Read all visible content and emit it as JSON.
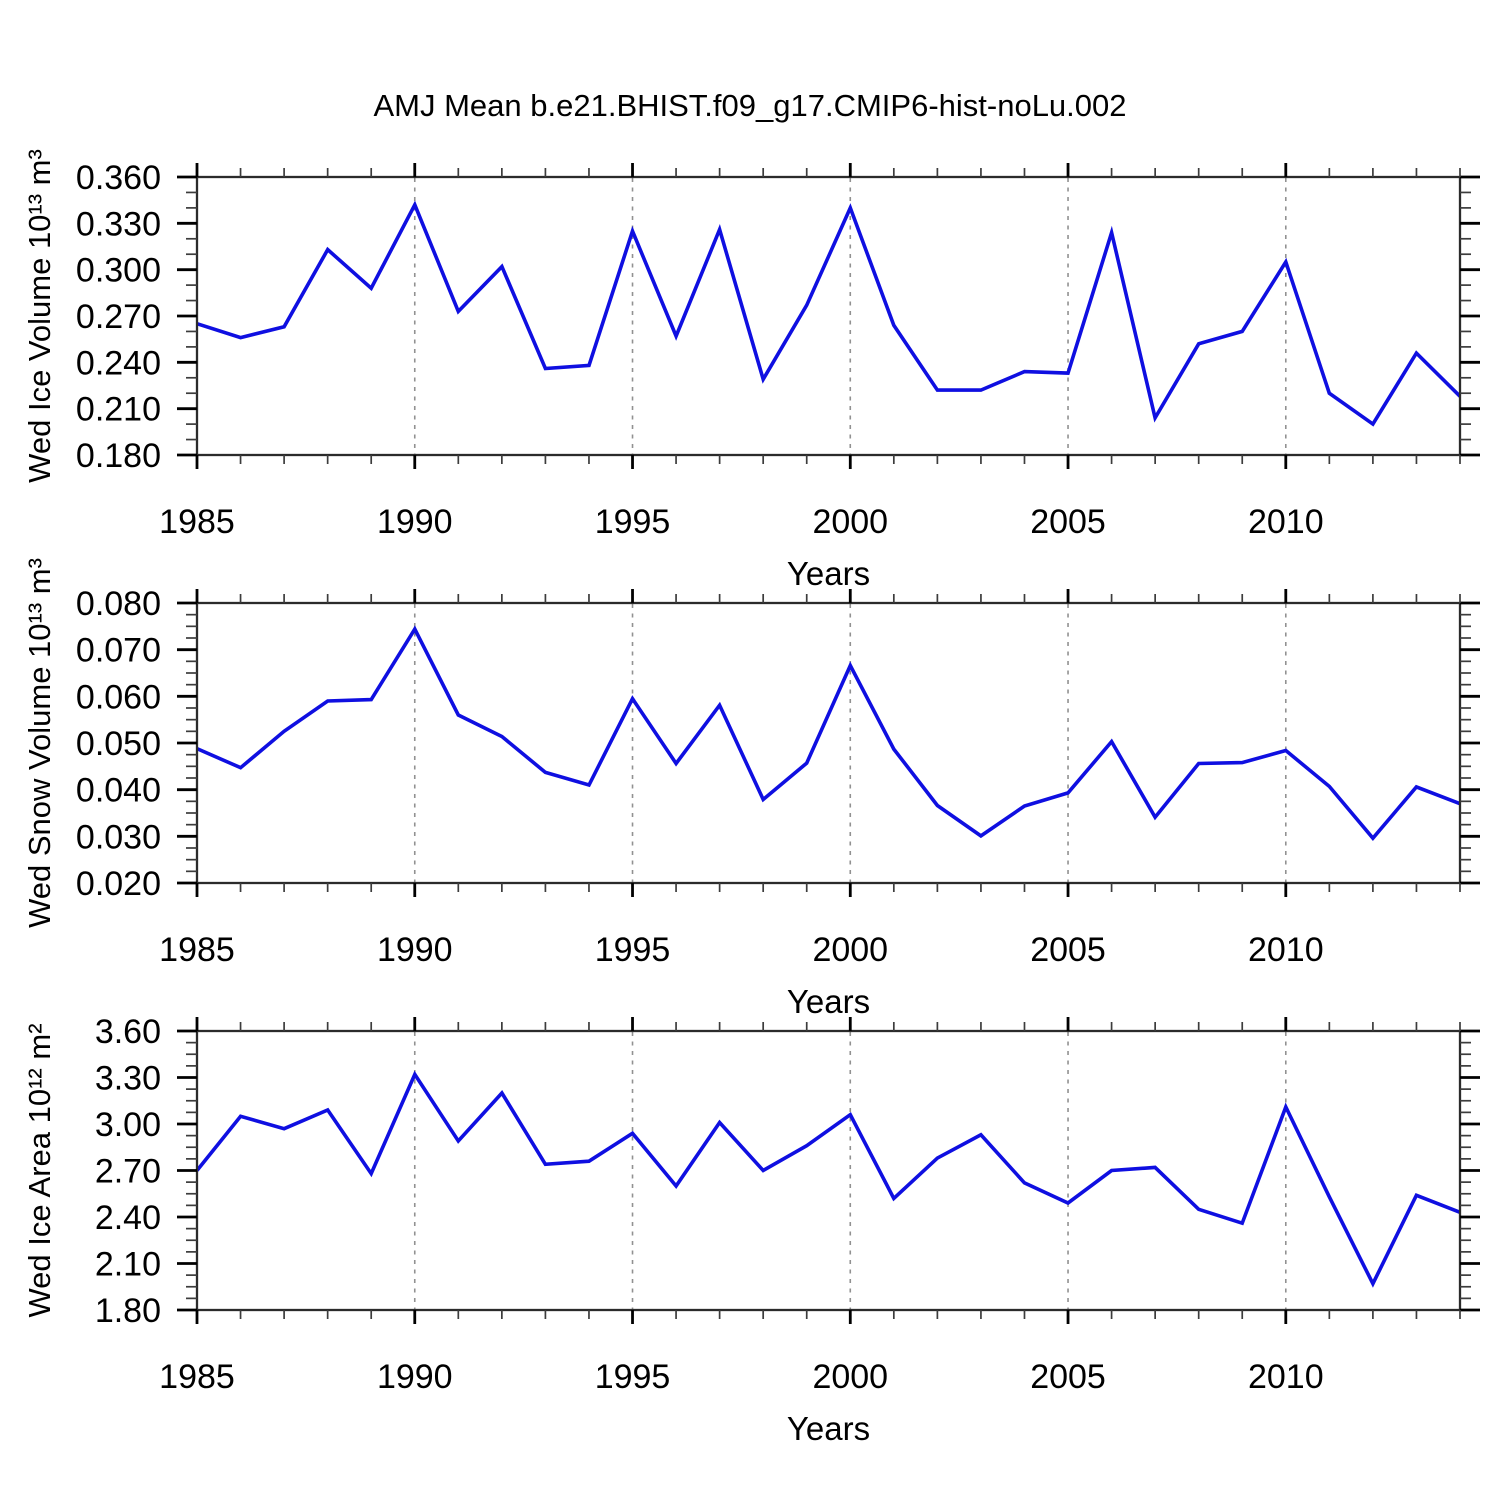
{
  "title": "AMJ Mean b.e21.BHIST.f09_g17.CMIP6-hist-noLu.002",
  "colors": {
    "line": "#0f0fe1",
    "grid": "#919191",
    "border": "#2b2b2b",
    "major_tick": "#000000",
    "minor_tick": "#3c3c3c",
    "text": "#000000"
  },
  "chart_data": [
    {
      "name": "wed-ice-volume",
      "type": "line",
      "ylabel": "Wed Ice Volume 10¹³ m³",
      "xlabel": "Years",
      "x": [
        1985,
        1986,
        1987,
        1988,
        1989,
        1990,
        1991,
        1992,
        1993,
        1994,
        1995,
        1996,
        1997,
        1998,
        1999,
        2000,
        2001,
        2002,
        2003,
        2004,
        2005,
        2006,
        2007,
        2008,
        2009,
        2010,
        2011,
        2012,
        2013,
        2014
      ],
      "values": [
        0.265,
        0.256,
        0.263,
        0.313,
        0.288,
        0.342,
        0.273,
        0.302,
        0.236,
        0.238,
        0.325,
        0.257,
        0.326,
        0.229,
        0.277,
        0.34,
        0.264,
        0.222,
        0.222,
        0.234,
        0.233,
        0.324,
        0.204,
        0.252,
        0.26,
        0.305,
        0.22,
        0.2,
        0.246,
        0.218
      ],
      "xlim": [
        1985,
        2014
      ],
      "ylim": [
        0.18,
        0.36
      ],
      "ytick_values": [
        0.18,
        0.21,
        0.24,
        0.27,
        0.3,
        0.33,
        0.36
      ],
      "ytick_labels": [
        "0.180",
        "0.210",
        "0.240",
        "0.270",
        "0.300",
        "0.330",
        "0.360"
      ],
      "ytick_minor_step": 0.01,
      "xticks_major": [
        1985,
        1990,
        1995,
        2000,
        2005,
        2010
      ],
      "xtick_labels": [
        "1985",
        "1990",
        "1995",
        "2000",
        "2005",
        "2010"
      ],
      "grid_x": [
        1990,
        1995,
        2000,
        2005,
        2010
      ],
      "grid_style": "vertical-dashed",
      "legend": "none"
    },
    {
      "name": "wed-snow-volume",
      "type": "line",
      "ylabel": "Wed Snow Volume 10¹³ m³",
      "xlabel": "Years",
      "x": [
        1985,
        1986,
        1987,
        1988,
        1989,
        1990,
        1991,
        1992,
        1993,
        1994,
        1995,
        1996,
        1997,
        1998,
        1999,
        2000,
        2001,
        2002,
        2003,
        2004,
        2005,
        2006,
        2007,
        2008,
        2009,
        2010,
        2011,
        2012,
        2013,
        2014
      ],
      "values": [
        0.0488,
        0.0447,
        0.0525,
        0.059,
        0.0593,
        0.0744,
        0.056,
        0.0514,
        0.0437,
        0.041,
        0.0595,
        0.0456,
        0.0581,
        0.0379,
        0.0457,
        0.0666,
        0.0487,
        0.0366,
        0.0301,
        0.0365,
        0.0393,
        0.0503,
        0.0341,
        0.0456,
        0.0458,
        0.0484,
        0.0407,
        0.0296,
        0.0406,
        0.037
      ],
      "xlim": [
        1985,
        2014
      ],
      "ylim": [
        0.02,
        0.08
      ],
      "ytick_values": [
        0.02,
        0.03,
        0.04,
        0.05,
        0.06,
        0.07,
        0.08
      ],
      "ytick_labels": [
        "0.020",
        "0.030",
        "0.040",
        "0.050",
        "0.060",
        "0.070",
        "0.080"
      ],
      "ytick_minor_step": 0.0025,
      "xticks_major": [
        1985,
        1990,
        1995,
        2000,
        2005,
        2010
      ],
      "xtick_labels": [
        "1985",
        "1990",
        "1995",
        "2000",
        "2005",
        "2010"
      ],
      "grid_x": [
        1990,
        1995,
        2000,
        2005,
        2010
      ],
      "grid_style": "vertical-dashed",
      "legend": "none"
    },
    {
      "name": "wed-ice-area",
      "type": "line",
      "ylabel": "Wed Ice Area 10¹² m²",
      "xlabel": "Years",
      "x": [
        1985,
        1986,
        1987,
        1988,
        1989,
        1990,
        1991,
        1992,
        1993,
        1994,
        1995,
        1996,
        1997,
        1998,
        1999,
        2000,
        2001,
        2002,
        2003,
        2004,
        2005,
        2006,
        2007,
        2008,
        2009,
        2010,
        2011,
        2012,
        2013,
        2014
      ],
      "values": [
        2.7,
        3.05,
        2.97,
        3.09,
        2.68,
        3.32,
        2.89,
        3.2,
        2.74,
        2.76,
        2.94,
        2.6,
        3.01,
        2.7,
        2.86,
        3.06,
        2.52,
        2.78,
        2.93,
        2.62,
        2.49,
        2.7,
        2.72,
        2.45,
        2.36,
        3.11,
        2.53,
        1.97,
        2.54,
        2.43
      ],
      "xlim": [
        1985,
        2014
      ],
      "ylim": [
        1.8,
        3.6
      ],
      "ytick_values": [
        1.8,
        2.1,
        2.4,
        2.7,
        3.0,
        3.3,
        3.6
      ],
      "ytick_labels": [
        "1.80",
        "2.10",
        "2.40",
        "2.70",
        "3.00",
        "3.30",
        "3.60"
      ],
      "ytick_minor_step": 0.075,
      "xticks_major": [
        1985,
        1990,
        1995,
        2000,
        2005,
        2010
      ],
      "xtick_labels": [
        "1985",
        "1990",
        "1995",
        "2000",
        "2005",
        "2010"
      ],
      "grid_x": [
        1990,
        1995,
        2000,
        2005,
        2010
      ],
      "grid_style": "vertical-dashed",
      "legend": "none"
    }
  ]
}
